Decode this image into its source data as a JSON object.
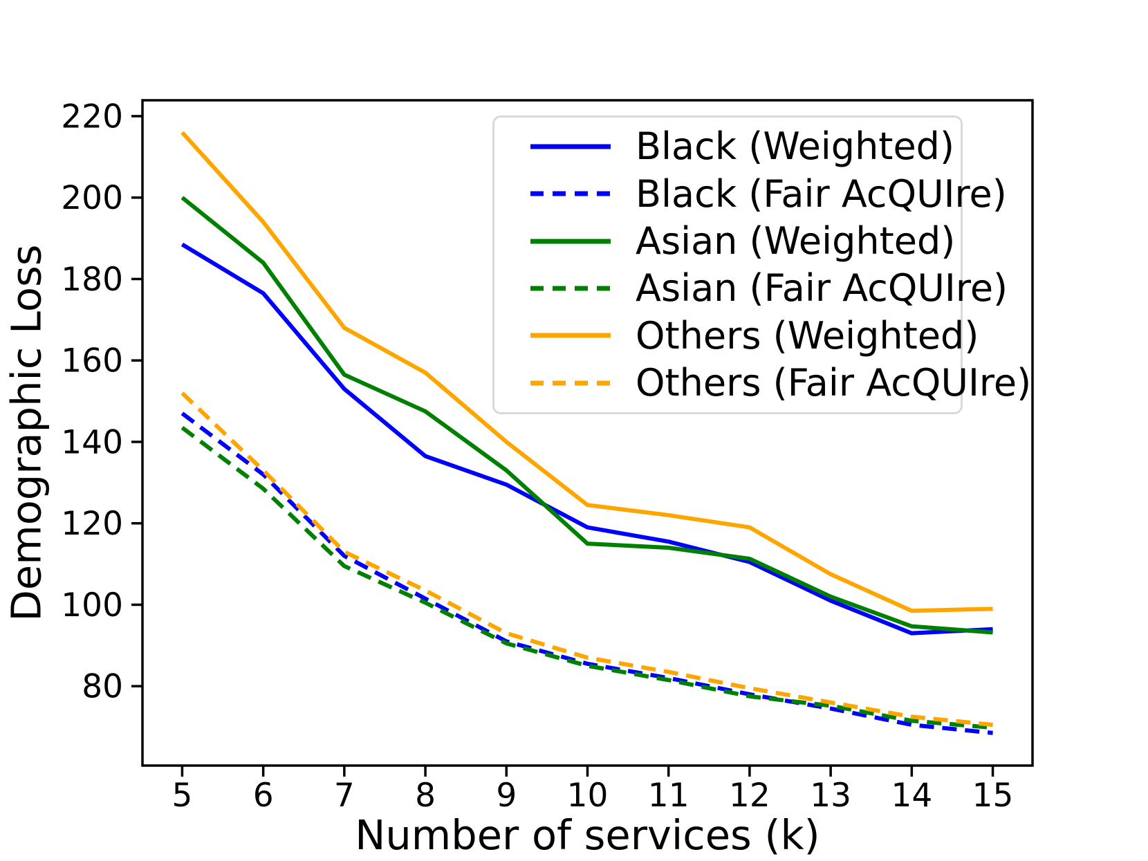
{
  "chart_data": {
    "type": "line",
    "xlabel": "Number of services (k)",
    "ylabel": "Demographic Loss",
    "x": [
      5,
      6,
      7,
      8,
      9,
      10,
      11,
      12,
      13,
      14,
      15
    ],
    "x_ticks": [
      5,
      6,
      7,
      8,
      9,
      10,
      11,
      12,
      13,
      14,
      15
    ],
    "y_ticks": [
      80,
      100,
      120,
      140,
      160,
      180,
      200,
      220
    ],
    "xlim": [
      4.51,
      15.49
    ],
    "ylim": [
      60.5,
      223.9
    ],
    "grid": false,
    "legend_position": "upper right",
    "series": [
      {
        "name": "Black (Weighted)",
        "color": "#0000ff",
        "style": "solid",
        "values": [
          188.5,
          176.5,
          153,
          136.5,
          129.5,
          119,
          115.5,
          110.5,
          101,
          93,
          94
        ]
      },
      {
        "name": "Black (Fair AcQUIre)",
        "color": "#0000ff",
        "style": "dashed",
        "values": [
          147,
          132,
          112,
          101.5,
          91,
          85.5,
          82,
          78,
          74.5,
          70.5,
          68.5
        ]
      },
      {
        "name": "Asian (Weighted)",
        "color": "#008000",
        "style": "solid",
        "values": [
          200,
          184,
          156.5,
          147.5,
          133,
          115,
          114,
          111.3,
          102,
          94.7,
          93.2
        ]
      },
      {
        "name": "Asian (Fair AcQUIre)",
        "color": "#008000",
        "style": "dashed",
        "values": [
          143.5,
          128.5,
          109.5,
          100.5,
          90.5,
          85,
          81.5,
          77.5,
          75.2,
          71.5,
          69.8
        ]
      },
      {
        "name": "Others (Weighted)",
        "color": "#ffa500",
        "style": "solid",
        "values": [
          216,
          194,
          168,
          157,
          140,
          124.5,
          122,
          119,
          107.5,
          98.5,
          99
        ]
      },
      {
        "name": "Others (Fair AcQUIre)",
        "color": "#ffa500",
        "style": "dashed",
        "values": [
          152,
          133,
          113,
          103.5,
          93,
          87,
          83.5,
          79.5,
          76,
          72.5,
          70.5
        ]
      }
    ]
  }
}
